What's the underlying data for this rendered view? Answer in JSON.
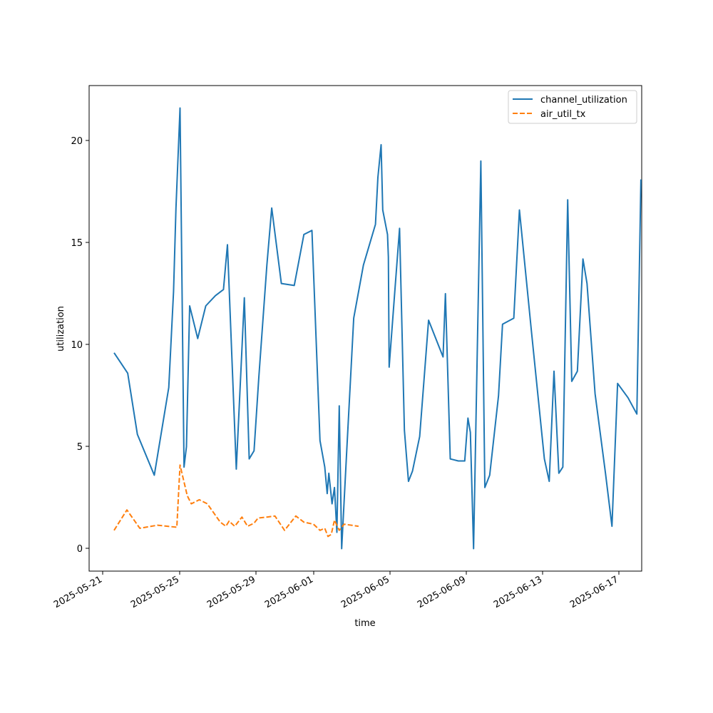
{
  "chart_data": {
    "type": "line",
    "xlabel": "time",
    "ylabel": "utilization",
    "x_tick_labels": [
      "2025-05-21",
      "2025-05-25",
      "2025-05-29",
      "2025-06-01",
      "2025-06-05",
      "2025-06-09",
      "2025-06-13",
      "2025-06-17"
    ],
    "y_tick_labels": [
      "0",
      "5",
      "10",
      "15",
      "20"
    ],
    "ylim": [
      -1.1,
      22.7
    ],
    "xlim": [
      "2025-05-20T07:00",
      "2025-06-17T22:00"
    ],
    "grid": false,
    "legend_position": "top-right",
    "colors": {
      "channel_utilization": "#1f77b4",
      "air_util_tx": "#ff7f0e"
    },
    "series": [
      {
        "name": "channel_utilization",
        "style": "solid",
        "points": [
          [
            "2025-05-21T14:00",
            9.6
          ],
          [
            "2025-05-22T07:00",
            8.6
          ],
          [
            "2025-05-22T19:00",
            5.6
          ],
          [
            "2025-05-23T16:00",
            3.6
          ],
          [
            "2025-05-24T10:00",
            7.9
          ],
          [
            "2025-05-24T16:00",
            12.6
          ],
          [
            "2025-05-24T19:00",
            16.7
          ],
          [
            "2025-05-25T00:00",
            21.6
          ],
          [
            "2025-05-25T05:00",
            4.0
          ],
          [
            "2025-05-25T08:00",
            5.0
          ],
          [
            "2025-05-25T12:00",
            11.9
          ],
          [
            "2025-05-25T22:00",
            10.3
          ],
          [
            "2025-05-26T08:00",
            11.9
          ],
          [
            "2025-05-26T20:00",
            12.4
          ],
          [
            "2025-05-27T06:00",
            12.7
          ],
          [
            "2025-05-27T11:00",
            14.9
          ],
          [
            "2025-05-27T22:00",
            3.9
          ],
          [
            "2025-05-28T08:00",
            12.3
          ],
          [
            "2025-05-28T14:00",
            4.4
          ],
          [
            "2025-05-28T20:00",
            4.8
          ],
          [
            "2025-05-29T02:00",
            8.4
          ],
          [
            "2025-05-29T12:00",
            13.9
          ],
          [
            "2025-05-29T18:00",
            16.7
          ],
          [
            "2025-05-30T06:00",
            13.0
          ],
          [
            "2025-05-30T22:00",
            12.9
          ],
          [
            "2025-05-31T10:00",
            15.4
          ],
          [
            "2025-05-31T20:00",
            15.6
          ],
          [
            "2025-06-01T06:00",
            5.3
          ],
          [
            "2025-06-01T12:00",
            4.0
          ],
          [
            "2025-06-01T15:00",
            2.7
          ],
          [
            "2025-06-01T17:00",
            3.7
          ],
          [
            "2025-06-01T21:00",
            2.2
          ],
          [
            "2025-06-02T00:00",
            3.0
          ],
          [
            "2025-06-02T03:00",
            0.8
          ],
          [
            "2025-06-02T06:00",
            7.0
          ],
          [
            "2025-06-02T09:00",
            0.0
          ],
          [
            "2025-06-02T15:00",
            4.6
          ],
          [
            "2025-06-02T21:00",
            9.1
          ],
          [
            "2025-06-03T00:00",
            11.3
          ],
          [
            "2025-06-03T12:00",
            13.9
          ],
          [
            "2025-06-04T03:00",
            15.9
          ],
          [
            "2025-06-04T06:00",
            18.2
          ],
          [
            "2025-06-04T10:00",
            19.8
          ],
          [
            "2025-06-04T12:00",
            16.6
          ],
          [
            "2025-06-04T18:00",
            15.4
          ],
          [
            "2025-06-04T19:00",
            14.3
          ],
          [
            "2025-06-04T20:00",
            8.9
          ],
          [
            "2025-06-05T03:00",
            12.6
          ],
          [
            "2025-06-05T09:00",
            15.7
          ],
          [
            "2025-06-05T15:00",
            5.8
          ],
          [
            "2025-06-05T20:00",
            3.3
          ],
          [
            "2025-06-06T01:00",
            3.8
          ],
          [
            "2025-06-06T10:00",
            5.5
          ],
          [
            "2025-06-06T21:00",
            11.2
          ],
          [
            "2025-06-07T15:00",
            9.4
          ],
          [
            "2025-06-07T18:00",
            12.5
          ],
          [
            "2025-06-08T00:00",
            4.4
          ],
          [
            "2025-06-08T10:00",
            4.3
          ],
          [
            "2025-06-08T18:00",
            4.3
          ],
          [
            "2025-06-08T22:00",
            6.4
          ],
          [
            "2025-06-09T01:00",
            5.7
          ],
          [
            "2025-06-09T05:00",
            0.0
          ],
          [
            "2025-06-09T14:00",
            19.0
          ],
          [
            "2025-06-09T19:00",
            3.0
          ],
          [
            "2025-06-10T01:00",
            3.6
          ],
          [
            "2025-06-10T12:00",
            7.5
          ],
          [
            "2025-06-10T17:00",
            11.0
          ],
          [
            "2025-06-11T07:00",
            11.3
          ],
          [
            "2025-06-11T14:00",
            16.6
          ],
          [
            "2025-06-12T05:00",
            10.6
          ],
          [
            "2025-06-12T21:00",
            4.4
          ],
          [
            "2025-06-13T03:00",
            3.3
          ],
          [
            "2025-06-13T09:00",
            8.7
          ],
          [
            "2025-06-13T15:00",
            3.7
          ],
          [
            "2025-06-13T20:00",
            4.0
          ],
          [
            "2025-06-14T02:00",
            17.1
          ],
          [
            "2025-06-14T07:00",
            8.2
          ],
          [
            "2025-06-14T14:00",
            8.7
          ],
          [
            "2025-06-14T21:00",
            14.2
          ],
          [
            "2025-06-15T02:00",
            13.0
          ],
          [
            "2025-06-15T12:00",
            7.6
          ],
          [
            "2025-06-16T01:00",
            3.7
          ],
          [
            "2025-06-16T09:00",
            1.1
          ],
          [
            "2025-06-16T16:00",
            8.1
          ],
          [
            "2025-06-17T05:00",
            7.4
          ],
          [
            "2025-06-17T16:00",
            6.6
          ],
          [
            "2025-06-17T21:00",
            18.1
          ]
        ]
      },
      {
        "name": "air_util_tx",
        "style": "dashed",
        "points": [
          [
            "2025-05-21T14:00",
            0.9
          ],
          [
            "2025-05-22T06:00",
            1.9
          ],
          [
            "2025-05-22T22:00",
            1.0
          ],
          [
            "2025-05-23T20:00",
            1.15
          ],
          [
            "2025-05-24T20:00",
            1.05
          ],
          [
            "2025-05-25T00:00",
            4.1
          ],
          [
            "2025-05-25T09:00",
            2.6
          ],
          [
            "2025-05-25T14:00",
            2.2
          ],
          [
            "2025-05-26T00:00",
            2.4
          ],
          [
            "2025-05-26T10:00",
            2.2
          ],
          [
            "2025-05-27T02:00",
            1.3
          ],
          [
            "2025-05-27T09:00",
            1.1
          ],
          [
            "2025-05-27T13:00",
            1.35
          ],
          [
            "2025-05-27T20:00",
            1.1
          ],
          [
            "2025-05-28T05:00",
            1.55
          ],
          [
            "2025-05-28T12:00",
            1.1
          ],
          [
            "2025-05-28T20:00",
            1.25
          ],
          [
            "2025-05-29T01:00",
            1.5
          ],
          [
            "2025-05-29T12:00",
            1.55
          ],
          [
            "2025-05-29T22:00",
            1.6
          ],
          [
            "2025-05-30T10:00",
            0.9
          ],
          [
            "2025-05-31T00:00",
            1.6
          ],
          [
            "2025-05-31T10:00",
            1.3
          ],
          [
            "2025-05-31T22:00",
            1.2
          ],
          [
            "2025-06-01T06:00",
            0.9
          ],
          [
            "2025-06-01T12:00",
            1.0
          ],
          [
            "2025-06-01T16:00",
            0.6
          ],
          [
            "2025-06-01T20:00",
            0.7
          ],
          [
            "2025-06-02T00:00",
            1.4
          ],
          [
            "2025-06-02T06:00",
            0.9
          ],
          [
            "2025-06-02T12:00",
            1.2
          ],
          [
            "2025-06-03T06:00",
            1.1
          ]
        ]
      }
    ]
  }
}
